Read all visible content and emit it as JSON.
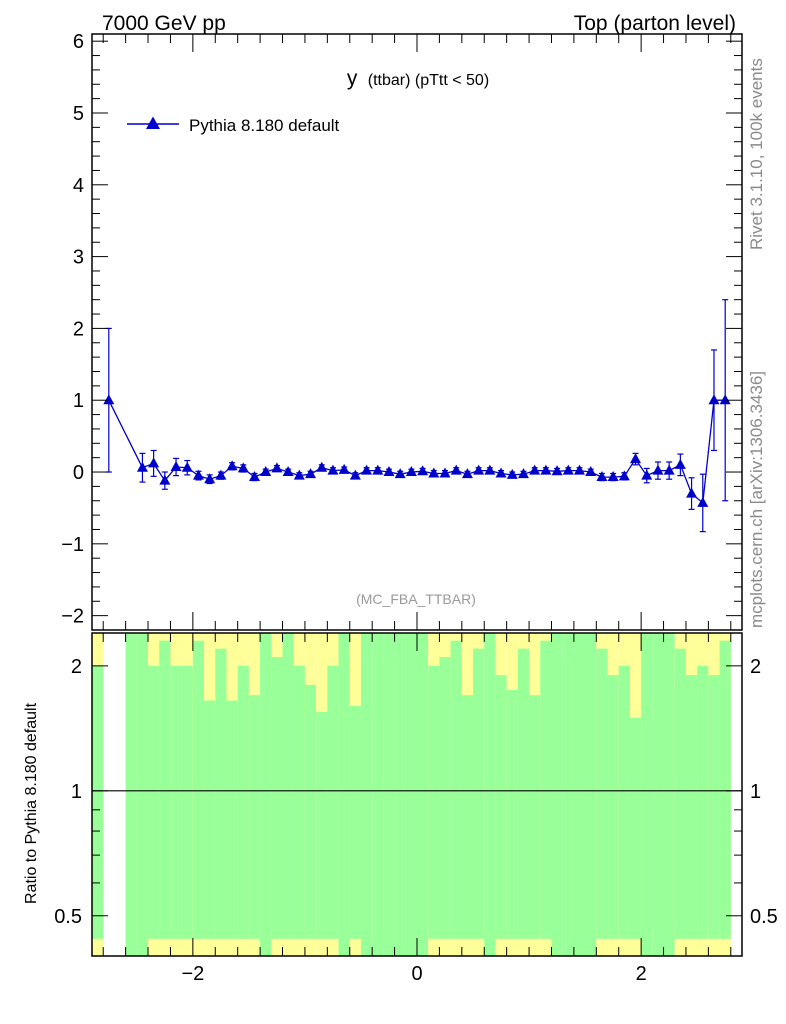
{
  "header": {
    "left": "7000 GeV pp",
    "right": "Top (parton level)"
  },
  "side": {
    "rivet": "Rivet 3.1.10,  100k events",
    "mcplots": "mcplots.cern.ch [arXiv:1306.3436]"
  },
  "chart_data": {
    "type": "scatter",
    "title_main": "y",
    "title_sub": "(ttbar)  (pTtt < 50)",
    "watermark": "(MC_FBA_TTBAR)",
    "xlabel": "",
    "ylabel": "",
    "xlim": [
      -2.9,
      2.9
    ],
    "ylim": [
      -2.2,
      6.1
    ],
    "xticks": [
      -2,
      0,
      2
    ],
    "xtick_labels": [
      "−2",
      "0",
      "2"
    ],
    "yticks": [
      -2,
      -1,
      0,
      1,
      2,
      3,
      4,
      5,
      6
    ],
    "ytick_labels": [
      "−2",
      "−1",
      "0",
      "1",
      "2",
      "3",
      "4",
      "5",
      "6"
    ],
    "color": "#0000cc",
    "legend": {
      "label": "Pythia 8.180 default",
      "position": "top-left"
    },
    "series": [
      {
        "name": "Pythia 8.180 default",
        "x": [
          -2.75,
          -2.45,
          -2.35,
          -2.25,
          -2.15,
          -2.05,
          -1.95,
          -1.85,
          -1.75,
          -1.65,
          -1.55,
          -1.45,
          -1.35,
          -1.25,
          -1.15,
          -1.05,
          -0.95,
          -0.85,
          -0.75,
          -0.65,
          -0.55,
          -0.45,
          -0.35,
          -0.25,
          -0.15,
          -0.05,
          0.05,
          0.15,
          0.25,
          0.35,
          0.45,
          0.55,
          0.65,
          0.75,
          0.85,
          0.95,
          1.05,
          1.15,
          1.25,
          1.35,
          1.45,
          1.55,
          1.65,
          1.75,
          1.85,
          1.95,
          2.05,
          2.15,
          2.25,
          2.35,
          2.45,
          2.55,
          2.65,
          2.75
        ],
        "y": [
          1.0,
          0.06,
          0.12,
          -0.12,
          0.07,
          0.06,
          -0.05,
          -0.1,
          -0.05,
          0.08,
          0.05,
          -0.07,
          0.0,
          0.05,
          0.0,
          -0.05,
          -0.03,
          0.06,
          0.02,
          0.03,
          -0.05,
          0.02,
          0.02,
          0.0,
          -0.03,
          0.0,
          0.01,
          -0.02,
          -0.02,
          0.02,
          -0.03,
          0.02,
          0.02,
          -0.02,
          -0.04,
          -0.03,
          0.02,
          0.02,
          0.01,
          0.02,
          0.02,
          0.0,
          -0.07,
          -0.07,
          -0.06,
          0.18,
          -0.05,
          0.02,
          0.02,
          0.1,
          -0.3,
          -0.43,
          1.0,
          1.0
        ],
        "err": [
          1.0,
          0.2,
          0.18,
          0.12,
          0.12,
          0.1,
          0.06,
          0.06,
          0.05,
          0.05,
          0.05,
          0.05,
          0.04,
          0.04,
          0.04,
          0.04,
          0.04,
          0.04,
          0.04,
          0.04,
          0.04,
          0.04,
          0.04,
          0.04,
          0.04,
          0.04,
          0.04,
          0.04,
          0.04,
          0.04,
          0.04,
          0.04,
          0.04,
          0.04,
          0.04,
          0.04,
          0.04,
          0.04,
          0.04,
          0.04,
          0.04,
          0.04,
          0.05,
          0.05,
          0.05,
          0.08,
          0.1,
          0.12,
          0.12,
          0.15,
          0.22,
          0.4,
          0.7,
          1.4
        ]
      }
    ],
    "ratio": {
      "ylabel": "Ratio to Pythia 8.180 default",
      "ylim": [
        0.4,
        2.4
      ],
      "yticks": [
        0.5,
        1,
        2
      ],
      "ytick_labels": [
        "0.5",
        "1",
        "2"
      ],
      "reference": 1,
      "colors": {
        "band1": "#99ff99",
        "band2": "#ffff99"
      },
      "bin_width": 0.1,
      "bins": [
        {
          "x": -2.85,
          "yellow": true,
          "inner": 2.0
        },
        {
          "x": -2.75,
          "yellow": false,
          "inner": 0
        },
        {
          "x": -2.65,
          "yellow": false,
          "inner": 0
        },
        {
          "x": -2.55,
          "yellow": false,
          "inner": 2.4
        },
        {
          "x": -2.45,
          "yellow": false,
          "inner": 2.4
        },
        {
          "x": -2.35,
          "yellow": true,
          "inner": 2.0
        },
        {
          "x": -2.25,
          "yellow": true,
          "inner": 2.3
        },
        {
          "x": -2.15,
          "yellow": true,
          "inner": 2.0
        },
        {
          "x": -2.05,
          "yellow": true,
          "inner": 2.0
        },
        {
          "x": -1.95,
          "yellow": true,
          "inner": 2.3
        },
        {
          "x": -1.85,
          "yellow": true,
          "inner": 1.65
        },
        {
          "x": -1.75,
          "yellow": true,
          "inner": 2.2
        },
        {
          "x": -1.65,
          "yellow": true,
          "inner": 1.65
        },
        {
          "x": -1.55,
          "yellow": true,
          "inner": 2.0
        },
        {
          "x": -1.45,
          "yellow": true,
          "inner": 1.7
        },
        {
          "x": -1.35,
          "yellow": false,
          "inner": 2.4
        },
        {
          "x": -1.25,
          "yellow": true,
          "inner": 2.1
        },
        {
          "x": -1.15,
          "yellow": true,
          "inner": 2.4
        },
        {
          "x": -1.05,
          "yellow": true,
          "inner": 2.0
        },
        {
          "x": -0.95,
          "yellow": true,
          "inner": 1.8
        },
        {
          "x": -0.85,
          "yellow": true,
          "inner": 1.55
        },
        {
          "x": -0.75,
          "yellow": true,
          "inner": 2.0
        },
        {
          "x": -0.65,
          "yellow": false,
          "inner": 2.4
        },
        {
          "x": -0.55,
          "yellow": true,
          "inner": 1.6
        },
        {
          "x": -0.45,
          "yellow": false,
          "inner": 2.4
        },
        {
          "x": -0.35,
          "yellow": false,
          "inner": 2.4
        },
        {
          "x": -0.25,
          "yellow": false,
          "inner": 2.4
        },
        {
          "x": -0.15,
          "yellow": false,
          "inner": 2.4
        },
        {
          "x": -0.05,
          "yellow": false,
          "inner": 2.4
        },
        {
          "x": 0.05,
          "yellow": false,
          "inner": 2.4
        },
        {
          "x": 0.15,
          "yellow": true,
          "inner": 2.0
        },
        {
          "x": 0.25,
          "yellow": true,
          "inner": 2.1
        },
        {
          "x": 0.35,
          "yellow": true,
          "inner": 2.3
        },
        {
          "x": 0.45,
          "yellow": true,
          "inner": 1.7
        },
        {
          "x": 0.55,
          "yellow": true,
          "inner": 2.2
        },
        {
          "x": 0.65,
          "yellow": false,
          "inner": 2.4
        },
        {
          "x": 0.75,
          "yellow": true,
          "inner": 1.9
        },
        {
          "x": 0.85,
          "yellow": true,
          "inner": 1.75
        },
        {
          "x": 0.95,
          "yellow": true,
          "inner": 2.2
        },
        {
          "x": 1.05,
          "yellow": true,
          "inner": 1.7
        },
        {
          "x": 1.15,
          "yellow": true,
          "inner": 2.3
        },
        {
          "x": 1.25,
          "yellow": false,
          "inner": 2.4
        },
        {
          "x": 1.35,
          "yellow": false,
          "inner": 2.4
        },
        {
          "x": 1.45,
          "yellow": false,
          "inner": 2.4
        },
        {
          "x": 1.55,
          "yellow": false,
          "inner": 2.4
        },
        {
          "x": 1.65,
          "yellow": true,
          "inner": 2.2
        },
        {
          "x": 1.75,
          "yellow": true,
          "inner": 1.9
        },
        {
          "x": 1.85,
          "yellow": true,
          "inner": 2.0
        },
        {
          "x": 1.95,
          "yellow": true,
          "inner": 1.5
        },
        {
          "x": 2.05,
          "yellow": false,
          "inner": 2.4
        },
        {
          "x": 2.15,
          "yellow": false,
          "inner": 2.4
        },
        {
          "x": 2.25,
          "yellow": false,
          "inner": 2.4
        },
        {
          "x": 2.35,
          "yellow": true,
          "inner": 2.2
        },
        {
          "x": 2.45,
          "yellow": true,
          "inner": 1.9
        },
        {
          "x": 2.55,
          "yellow": true,
          "inner": 2.0
        },
        {
          "x": 2.65,
          "yellow": true,
          "inner": 1.9
        },
        {
          "x": 2.75,
          "yellow": true,
          "inner": 2.3
        }
      ]
    }
  }
}
